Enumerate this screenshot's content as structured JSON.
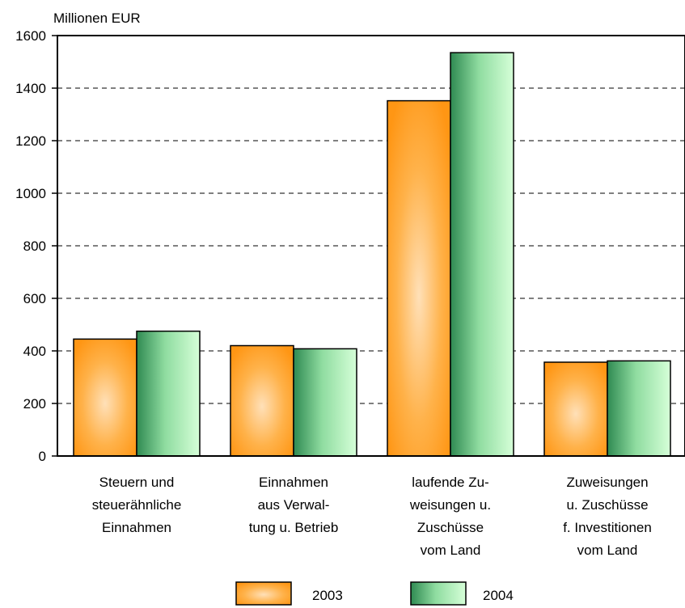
{
  "chart_data": {
    "type": "bar",
    "title": "",
    "ylabel": "Millionen EUR",
    "xlabel": "",
    "ylim": [
      0,
      1600
    ],
    "yticks": [
      0,
      200,
      400,
      600,
      800,
      1000,
      1200,
      1400,
      1600
    ],
    "grid": "horizontal dashed",
    "legend_position": "bottom",
    "categories": [
      [
        "Steuern und",
        "steuerähnliche",
        "Einnahmen"
      ],
      [
        "Einnahmen",
        "aus Verwal-",
        "tung u. Betrieb"
      ],
      [
        "laufende Zu-",
        "weisungen u.",
        "Zuschüsse",
        "vom Land"
      ],
      [
        "Zuweisungen",
        "u. Zuschüsse",
        "f. Investitionen",
        "vom Land"
      ]
    ],
    "series": [
      {
        "name": "2003",
        "values": [
          445,
          420,
          1352,
          357
        ],
        "color": "#ff9a1a"
      },
      {
        "name": "2004",
        "values": [
          475,
          408,
          1535,
          362
        ],
        "color": "#3f9c60"
      }
    ]
  }
}
